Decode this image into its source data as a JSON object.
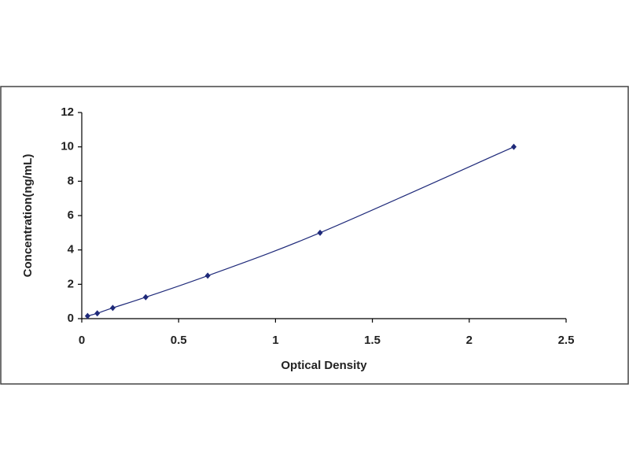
{
  "chart_data": {
    "type": "scatter-line",
    "x_label": "Optical Density",
    "y_label": "Concentration(ng/mL)",
    "x": [
      0.03,
      0.08,
      0.16,
      0.33,
      0.65,
      1.23,
      2.23
    ],
    "series": [
      {
        "color": "#1f2a7a",
        "values": [
          0.156,
          0.312,
          0.625,
          1.25,
          2.5,
          5,
          10
        ]
      }
    ],
    "xlim": [
      0,
      2.5
    ],
    "xticks": [
      0,
      0.5,
      1,
      1.5,
      2,
      2.5
    ],
    "ylim": [
      0,
      12
    ],
    "yticks": [
      0,
      2,
      4,
      6,
      8,
      10,
      12
    ],
    "grid": false
  }
}
